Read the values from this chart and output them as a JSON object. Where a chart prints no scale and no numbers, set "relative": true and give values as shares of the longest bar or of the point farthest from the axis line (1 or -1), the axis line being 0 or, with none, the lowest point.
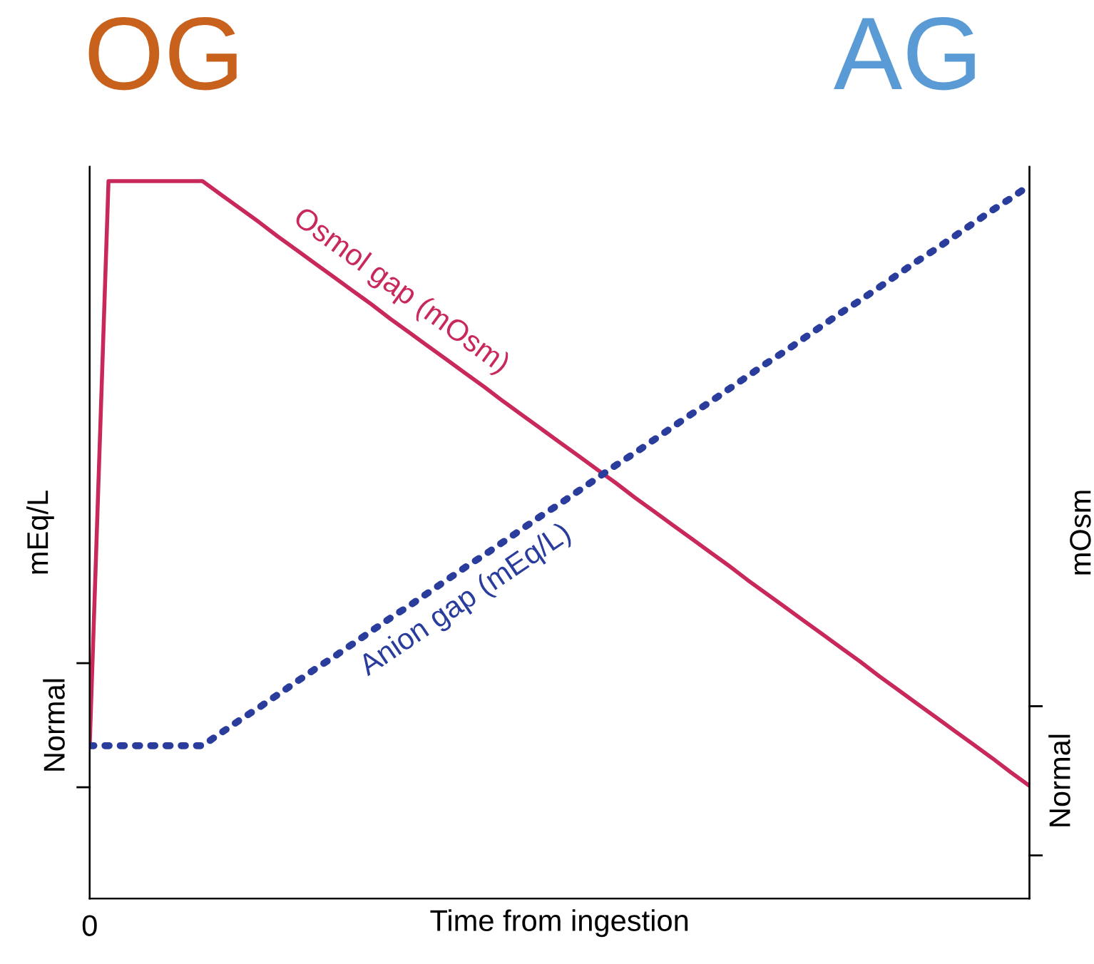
{
  "chart_data": {
    "type": "line",
    "relative": true,
    "xlabel": "Time from ingestion",
    "ylabel": "mEq/L",
    "y2label": "mOsm",
    "annotations": [
      "OG",
      "AG",
      "0",
      "Normal",
      "Normal"
    ],
    "categories": [
      null,
      null,
      null,
      null,
      null,
      null,
      null,
      null,
      null,
      null,
      null,
      null,
      null,
      null,
      null,
      null,
      null,
      null,
      null,
      null,
      null,
      null,
      null,
      null,
      null,
      null,
      null,
      null,
      null,
      null,
      null,
      null,
      null,
      null,
      null,
      null,
      null,
      null,
      null,
      null,
      null,
      null,
      null,
      null,
      null,
      null,
      null,
      null,
      null,
      null,
      null
    ],
    "series": [
      {
        "name": "Osmol gap (mOsm)",
        "color": "#c8285a",
        "line_style": "solid",
        "values": [
          0.213,
          1,
          1,
          1,
          1,
          1,
          1,
          0.981,
          0.962,
          0.943,
          0.923,
          0.904,
          0.885,
          0.866,
          0.847,
          0.828,
          0.808,
          0.789,
          0.77,
          0.751,
          0.732,
          0.713,
          0.693,
          0.674,
          0.655,
          0.636,
          0.617,
          0.598,
          0.579,
          0.559,
          0.54,
          0.521,
          0.502,
          0.483,
          0.464,
          0.444,
          0.425,
          0.406,
          0.387,
          0.368,
          0.349,
          0.33,
          0.31,
          0.291,
          0.272,
          0.253,
          0.234,
          0.215,
          0.196,
          0.176,
          0.157
        ]
      },
      {
        "name": "Anion gap (mEq/L)",
        "color": "#2a3c9c",
        "line_style": "dotted",
        "values": [
          0.213,
          0.213,
          0.213,
          0.213,
          0.213,
          0.213,
          0.213,
          0.231,
          0.249,
          0.266,
          0.284,
          0.302,
          0.32,
          0.337,
          0.355,
          0.373,
          0.391,
          0.408,
          0.426,
          0.444,
          0.462,
          0.479,
          0.497,
          0.515,
          0.533,
          0.55,
          0.568,
          0.586,
          0.604,
          0.621,
          0.639,
          0.657,
          0.675,
          0.692,
          0.71,
          0.728,
          0.746,
          0.763,
          0.781,
          0.799,
          0.817,
          0.834,
          0.852,
          0.87,
          0.888,
          0.905,
          0.923,
          0.941,
          0.959,
          0.976,
          0.994
        ]
      }
    ]
  }
}
